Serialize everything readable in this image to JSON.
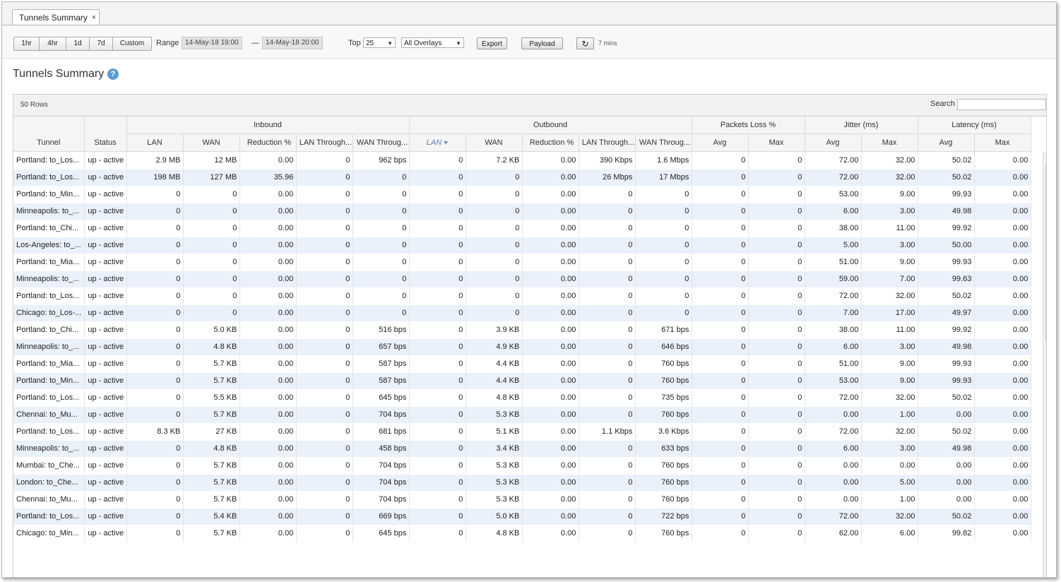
{
  "tab": {
    "label": "Tunnels Summary",
    "close": "×"
  },
  "toolbar": {
    "ranges": [
      "1hr",
      "4hr",
      "1d",
      "7d",
      "Custom"
    ],
    "range_label": "Range",
    "range_start": "14-May-18 19:00",
    "range_sep": "—",
    "range_end": "14-May-18 20:00",
    "top_label": "Top",
    "top_value": "25",
    "overlay_value": "All Overlays",
    "export_label": "Export",
    "payload_label": "Payload",
    "refresh_icon": "↻",
    "refresh_interval": "7 mins"
  },
  "page": {
    "title": "Tunnels Summary",
    "help_icon": "?"
  },
  "grid": {
    "row_count": "50 Rows",
    "search_label": "Search",
    "search_value": "",
    "groups": [
      "Inbound",
      "Outbound",
      "Packets Loss %",
      "Jitter (ms)",
      "Latency (ms)"
    ],
    "columns": [
      "Tunnel",
      "Status",
      "LAN",
      "WAN",
      "Reduction %",
      "LAN Through...",
      "WAN Throug...",
      "LAN",
      "WAN",
      "Reduction %",
      "LAN Through...",
      "WAN Throug...",
      "Avg",
      "Max",
      "Avg",
      "Max",
      "Avg",
      "Max"
    ],
    "rows": [
      [
        "Portland: to_Los...",
        "up - active",
        "2.9 MB",
        "12 MB",
        "0.00",
        "0",
        "962 bps",
        "0",
        "7.2 KB",
        "0.00",
        "390 Kbps",
        "1.6 Mbps",
        "0",
        "0",
        "72.00",
        "32.00",
        "50.02",
        "0.00"
      ],
      [
        "Portland: to_Los...",
        "up - active",
        "198 MB",
        "127 MB",
        "35.96",
        "0",
        "0",
        "0",
        "0",
        "0.00",
        "26 Mbps",
        "17 Mbps",
        "0",
        "0",
        "72.00",
        "32.00",
        "50.02",
        "0.00"
      ],
      [
        "Portland: to_Min...",
        "up - active",
        "0",
        "0",
        "0.00",
        "0",
        "0",
        "0",
        "0",
        "0.00",
        "0",
        "0",
        "0",
        "0",
        "53.00",
        "9.00",
        "99.93",
        "0.00"
      ],
      [
        "Minneapolis: to_...",
        "up - active",
        "0",
        "0",
        "0.00",
        "0",
        "0",
        "0",
        "0",
        "0.00",
        "0",
        "0",
        "0",
        "0",
        "6.00",
        "3.00",
        "49.98",
        "0.00"
      ],
      [
        "Portland: to_Chi...",
        "up - active",
        "0",
        "0",
        "0.00",
        "0",
        "0",
        "0",
        "0",
        "0.00",
        "0",
        "0",
        "0",
        "0",
        "38.00",
        "11.00",
        "99.92",
        "0.00"
      ],
      [
        "Los-Angeles: to_...",
        "up - active",
        "0",
        "0",
        "0.00",
        "0",
        "0",
        "0",
        "0",
        "0.00",
        "0",
        "0",
        "0",
        "0",
        "5.00",
        "3.00",
        "50.00",
        "0.00"
      ],
      [
        "Portland: to_Mia...",
        "up - active",
        "0",
        "0",
        "0.00",
        "0",
        "0",
        "0",
        "0",
        "0.00",
        "0",
        "0",
        "0",
        "0",
        "51.00",
        "9.00",
        "99.93",
        "0.00"
      ],
      [
        "Minneapolis: to_...",
        "up - active",
        "0",
        "0",
        "0.00",
        "0",
        "0",
        "0",
        "0",
        "0.00",
        "0",
        "0",
        "0",
        "0",
        "59.00",
        "7.00",
        "99.63",
        "0.00"
      ],
      [
        "Portland: to_Los...",
        "up - active",
        "0",
        "0",
        "0.00",
        "0",
        "0",
        "0",
        "0",
        "0.00",
        "0",
        "0",
        "0",
        "0",
        "72.00",
        "32.00",
        "50.02",
        "0.00"
      ],
      [
        "Chicago: to_Los-...",
        "up - active",
        "0",
        "0",
        "0.00",
        "0",
        "0",
        "0",
        "0",
        "0.00",
        "0",
        "0",
        "0",
        "0",
        "7.00",
        "17.00",
        "49.97",
        "0.00"
      ],
      [
        "Portland: to_Chi...",
        "up - active",
        "0",
        "5.0 KB",
        "0.00",
        "0",
        "516 bps",
        "0",
        "3.9 KB",
        "0.00",
        "0",
        "671 bps",
        "0",
        "0",
        "38.00",
        "11.00",
        "99.92",
        "0.00"
      ],
      [
        "Minneapolis: to_...",
        "up - active",
        "0",
        "4.8 KB",
        "0.00",
        "0",
        "657 bps",
        "0",
        "4.9 KB",
        "0.00",
        "0",
        "646 bps",
        "0",
        "0",
        "6.00",
        "3.00",
        "49.98",
        "0.00"
      ],
      [
        "Portland: to_Mia...",
        "up - active",
        "0",
        "5.7 KB",
        "0.00",
        "0",
        "587 bps",
        "0",
        "4.4 KB",
        "0.00",
        "0",
        "760 bps",
        "0",
        "0",
        "51.00",
        "9.00",
        "99.93",
        "0.00"
      ],
      [
        "Portland: to_Min...",
        "up - active",
        "0",
        "5.7 KB",
        "0.00",
        "0",
        "587 bps",
        "0",
        "4.4 KB",
        "0.00",
        "0",
        "760 bps",
        "0",
        "0",
        "53.00",
        "9.00",
        "99.93",
        "0.00"
      ],
      [
        "Portland: to_Los...",
        "up - active",
        "0",
        "5.5 KB",
        "0.00",
        "0",
        "645 bps",
        "0",
        "4.8 KB",
        "0.00",
        "0",
        "735 bps",
        "0",
        "0",
        "72.00",
        "32.00",
        "50.02",
        "0.00"
      ],
      [
        "Chennai: to_Mu...",
        "up - active",
        "0",
        "5.7 KB",
        "0.00",
        "0",
        "704 bps",
        "0",
        "5.3 KB",
        "0.00",
        "0",
        "760 bps",
        "0",
        "0",
        "0.00",
        "1.00",
        "0.00",
        "0.00"
      ],
      [
        "Portland: to_Los...",
        "up - active",
        "8.3 KB",
        "27 KB",
        "0.00",
        "0",
        "681 bps",
        "0",
        "5.1 KB",
        "0.00",
        "1.1 Kbps",
        "3.6 Kbps",
        "0",
        "0",
        "72.00",
        "32.00",
        "50.02",
        "0.00"
      ],
      [
        "Minneapolis: to_...",
        "up - active",
        "0",
        "4.8 KB",
        "0.00",
        "0",
        "458 bps",
        "0",
        "3.4 KB",
        "0.00",
        "0",
        "633 bps",
        "0",
        "0",
        "6.00",
        "3.00",
        "49.98",
        "0.00"
      ],
      [
        "Mumbai: to_Che...",
        "up - active",
        "0",
        "5.7 KB",
        "0.00",
        "0",
        "704 bps",
        "0",
        "5.3 KB",
        "0.00",
        "0",
        "760 bps",
        "0",
        "0",
        "0.00",
        "0.00",
        "0.00",
        "0.00"
      ],
      [
        "London: to_Che...",
        "up - active",
        "0",
        "5.7 KB",
        "0.00",
        "0",
        "704 bps",
        "0",
        "5.3 KB",
        "0.00",
        "0",
        "760 bps",
        "0",
        "0",
        "0.00",
        "5.00",
        "0.00",
        "0.00"
      ],
      [
        "Chennai: to_Mu...",
        "up - active",
        "0",
        "5.7 KB",
        "0.00",
        "0",
        "704 bps",
        "0",
        "5.3 KB",
        "0.00",
        "0",
        "760 bps",
        "0",
        "0",
        "0.00",
        "1.00",
        "0.00",
        "0.00"
      ],
      [
        "Portland: to_Los...",
        "up - active",
        "0",
        "5.4 KB",
        "0.00",
        "0",
        "669 bps",
        "0",
        "5.0 KB",
        "0.00",
        "0",
        "722 bps",
        "0",
        "0",
        "72.00",
        "32.00",
        "50.02",
        "0.00"
      ],
      [
        "Chicago: to_Min...",
        "up - active",
        "0",
        "5.7 KB",
        "0.00",
        "0",
        "645 bps",
        "0",
        "4.8 KB",
        "0.00",
        "0",
        "760 bps",
        "0",
        "0",
        "62.00",
        "6.00",
        "99.82",
        "0.00"
      ]
    ]
  }
}
